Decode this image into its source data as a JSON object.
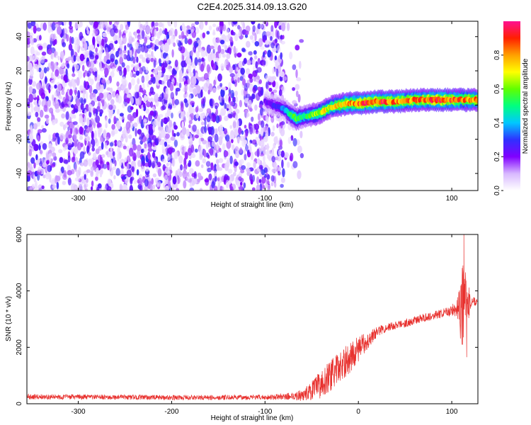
{
  "figure_title": "C2E4.2025.314.09.13.G20",
  "chart_data": [
    {
      "type": "heatmap",
      "xlabel": "Height of straight line (km)",
      "ylabel": "Frequency (Hz)",
      "xlim": [
        -355,
        128
      ],
      "ylim": [
        -50,
        49
      ],
      "xticks": [
        -300,
        -200,
        -100,
        0,
        100
      ],
      "yticks": [
        -40,
        -20,
        0,
        20,
        40
      ],
      "colorbar": {
        "label": "Normalized spectral amplitude",
        "range": [
          0,
          1
        ],
        "ticks": [
          0.0,
          0.2,
          0.4,
          0.6,
          0.8
        ],
        "tick_labels": [
          "0.0",
          "0.2",
          "0.4",
          "0.6",
          "0.8"
        ],
        "colormap": [
          "#ffffff",
          "#d8b8ff",
          "#8000ff",
          "#3030ff",
          "#00c8ff",
          "#00ff80",
          "#60ff00",
          "#ffff00",
          "#ffa000",
          "#ff2000",
          "#ff1090"
        ]
      },
      "noise_region": {
        "x_range": [
          -355,
          -60
        ],
        "amplitude": [
          0.05,
          0.3
        ]
      },
      "ridge": [
        {
          "x": -100,
          "y": 2,
          "amp": 0.2
        },
        {
          "x": -92,
          "y": 0,
          "amp": 0.25
        },
        {
          "x": -84,
          "y": -1,
          "amp": 0.3
        },
        {
          "x": -78,
          "y": -3,
          "amp": 0.38
        },
        {
          "x": -72,
          "y": -6,
          "amp": 0.5
        },
        {
          "x": -66,
          "y": -8,
          "amp": 0.55
        },
        {
          "x": -60,
          "y": -7,
          "amp": 0.5
        },
        {
          "x": -52,
          "y": -6,
          "amp": 0.55
        },
        {
          "x": -44,
          "y": -5,
          "amp": 0.65
        },
        {
          "x": -36,
          "y": -3,
          "amp": 0.7
        },
        {
          "x": -28,
          "y": -1,
          "amp": 0.7
        },
        {
          "x": -20,
          "y": 0,
          "amp": 0.75
        },
        {
          "x": -10,
          "y": 1,
          "amp": 0.8
        },
        {
          "x": 0,
          "y": 1,
          "amp": 0.85
        },
        {
          "x": 20,
          "y": 2,
          "amp": 0.9
        },
        {
          "x": 40,
          "y": 2,
          "amp": 0.85
        },
        {
          "x": 60,
          "y": 3,
          "amp": 0.8
        },
        {
          "x": 80,
          "y": 3,
          "amp": 0.9
        },
        {
          "x": 100,
          "y": 3,
          "amp": 0.85
        },
        {
          "x": 115,
          "y": 3,
          "amp": 0.8
        },
        {
          "x": 128,
          "y": 3,
          "amp": 0.8
        }
      ]
    },
    {
      "type": "line",
      "xlabel": "Height of straight line (km)",
      "ylabel": "SNR (10 * v/v)",
      "xlim": [
        -355,
        128
      ],
      "ylim": [
        0,
        6000
      ],
      "xticks": [
        -300,
        -200,
        -100,
        0,
        100
      ],
      "yticks": [
        0,
        2000,
        4000,
        6000
      ],
      "color": "#e8312e",
      "series": [
        {
          "x": [
            -355,
            -300,
            -250,
            -200,
            -150,
            -100,
            -80,
            -60,
            -50,
            -40,
            -30,
            -20,
            -10,
            0,
            10,
            20,
            30,
            40,
            50,
            60,
            70,
            80,
            90,
            100,
            105,
            110,
            115,
            120,
            128
          ],
          "y": [
            250,
            240,
            230,
            220,
            220,
            230,
            250,
            300,
            450,
            700,
            1000,
            1300,
            1600,
            1950,
            2250,
            2550,
            2700,
            2780,
            2850,
            2950,
            3050,
            3120,
            3200,
            3300,
            3400,
            3500,
            3550,
            3600,
            3650
          ],
          "noise_amplitude": [
            90,
            90,
            90,
            90,
            90,
            90,
            100,
            200,
            350,
            500,
            550,
            550,
            550,
            450,
            300,
            180,
            150,
            150,
            150,
            150,
            150,
            150,
            160,
            200,
            300,
            1600,
            1200,
            250,
            120
          ],
          "spikes": [
            {
              "x": 113,
              "y": 6000
            },
            {
              "x": 116,
              "y": 1650
            }
          ]
        }
      ]
    }
  ]
}
